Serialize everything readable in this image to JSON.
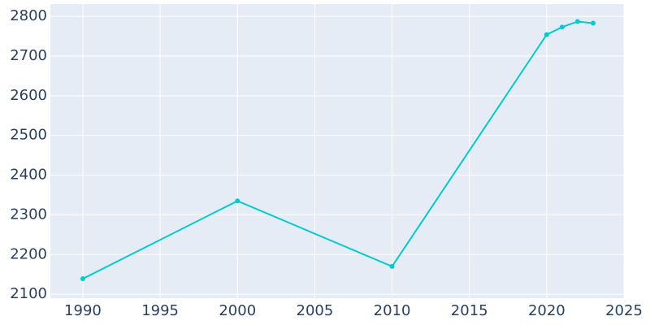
{
  "chart_data": {
    "type": "line",
    "x": [
      1990,
      2000,
      2010,
      2020,
      2021,
      2022,
      2023
    ],
    "series": [
      {
        "color": "#00cccc",
        "values": [
          2139,
          2335,
          2170,
          2754,
          2773,
          2787,
          2783
        ]
      }
    ],
    "xlim": [
      1987.9,
      2025
    ],
    "xticks": [
      1990,
      1995,
      2000,
      2005,
      2010,
      2015,
      2020,
      2025
    ],
    "ylim": [
      2090,
      2831
    ],
    "yticks": [
      2100,
      2200,
      2300,
      2400,
      2500,
      2600,
      2700,
      2800
    ],
    "grid": true,
    "background": "#e5ecf6"
  }
}
